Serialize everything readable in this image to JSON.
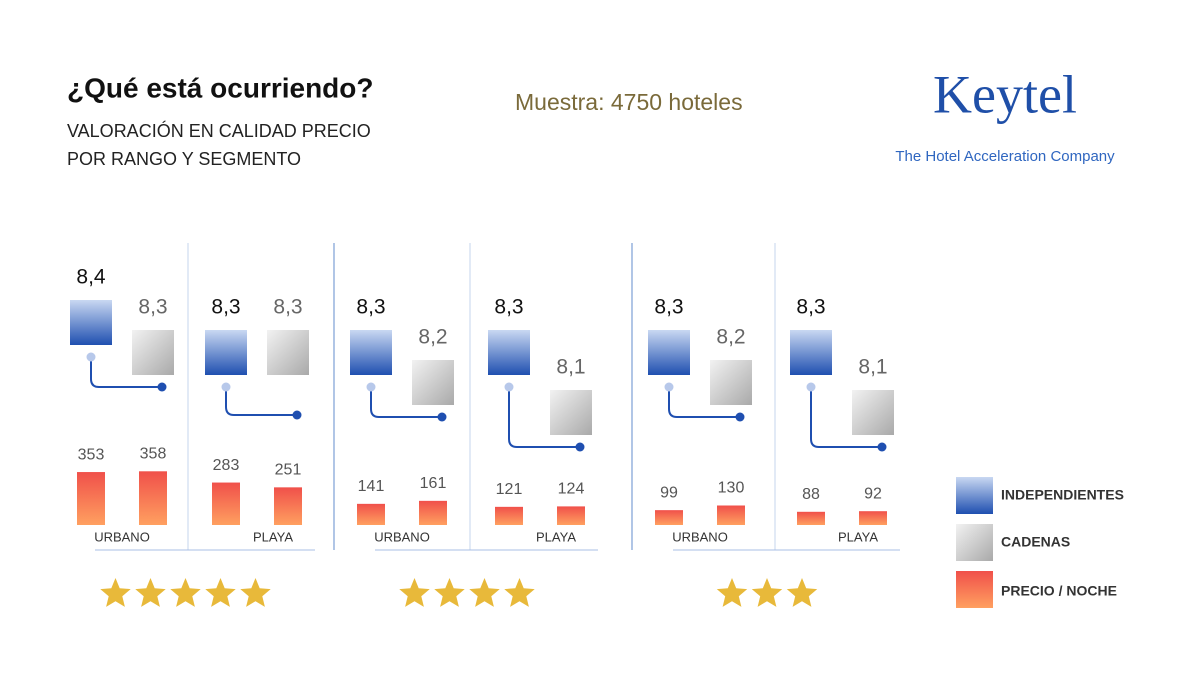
{
  "header": {
    "title": "¿Qué está ocurriendo?",
    "subtitle_lines": [
      "VALORACIÓN EN CALIDAD PRECIO",
      "POR RANGO Y SEGMENTO"
    ],
    "sample": "Muestra: 4750 hoteles"
  },
  "logo": {
    "name": "Keytel",
    "tagline": "The Hotel Acceleration Company"
  },
  "groups": [
    {
      "stars": 5,
      "segments": [
        {
          "name": "URBANO",
          "ratings": [
            8.4,
            8.3
          ],
          "rating_labels": [
            "8,4",
            "8,3"
          ],
          "prices": [
            353,
            358
          ]
        },
        {
          "name": "PLAYA",
          "ratings": [
            8.3,
            8.3
          ],
          "rating_labels": [
            "8,3",
            "8,3"
          ],
          "prices": [
            283,
            251
          ]
        }
      ]
    },
    {
      "stars": 4,
      "segments": [
        {
          "name": "URBANO",
          "ratings": [
            8.3,
            8.2
          ],
          "rating_labels": [
            "8,3",
            "8,2"
          ],
          "prices": [
            141,
            161
          ]
        },
        {
          "name": "PLAYA",
          "ratings": [
            8.3,
            8.1
          ],
          "rating_labels": [
            "8,3",
            "8,1"
          ],
          "prices": [
            121,
            124
          ]
        }
      ]
    },
    {
      "stars": 3,
      "segments": [
        {
          "name": "URBANO",
          "ratings": [
            8.3,
            8.2
          ],
          "rating_labels": [
            "8,3",
            "8,2"
          ],
          "prices": [
            99,
            130
          ]
        },
        {
          "name": "PLAYA",
          "ratings": [
            8.3,
            8.1
          ],
          "rating_labels": [
            "8,3",
            "8,1"
          ],
          "prices": [
            88,
            92
          ]
        }
      ]
    }
  ],
  "legend": [
    "INDEPENDIENTES",
    "CADENAS",
    "PRECIO / NOCHE"
  ]
}
